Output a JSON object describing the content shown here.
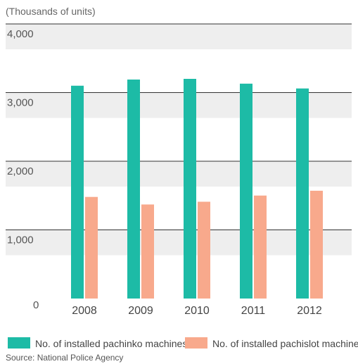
{
  "chart_data": {
    "type": "bar",
    "unit_label": "(Thousands of units)",
    "categories": [
      "2008",
      "2009",
      "2010",
      "2011",
      "2012"
    ],
    "series": [
      {
        "name": "No. of installed pachinko machines",
        "color": "#1dbba6",
        "values": [
          3100,
          3190,
          3200,
          3130,
          3060
        ]
      },
      {
        "name": "No. of installed pachislot machines",
        "color": "#f8a98c",
        "values": [
          1480,
          1370,
          1410,
          1500,
          1570
        ]
      }
    ],
    "yticks": [
      "0",
      "1,000",
      "2,000",
      "3,000",
      "4,000"
    ],
    "ylim": [
      0,
      4000
    ],
    "grid": true,
    "legend_position": "bottom",
    "source": "Source: National Police Agency",
    "colors": {
      "band": "#eeeeee",
      "gridline": "#333333"
    }
  }
}
